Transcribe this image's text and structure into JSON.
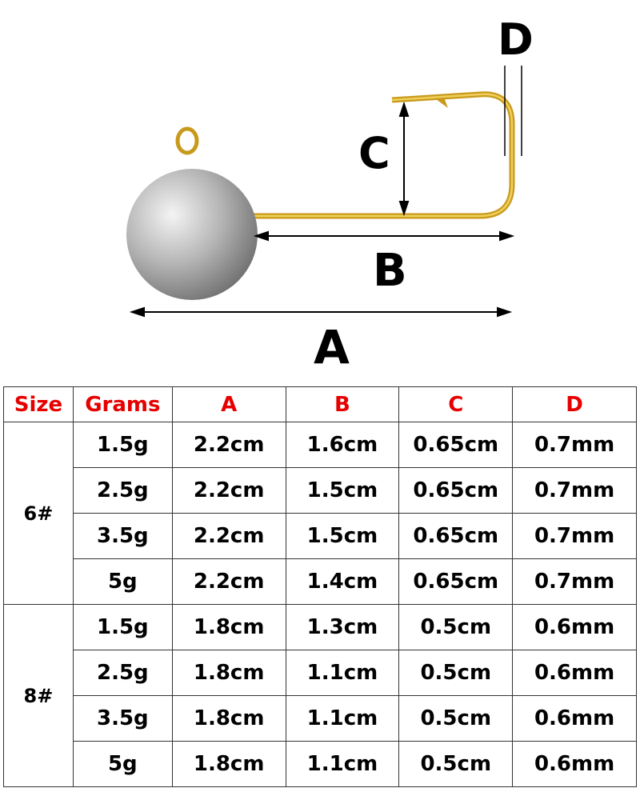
{
  "diagram": {
    "labels": {
      "A": "A",
      "B": "B",
      "C": "C",
      "D": "D"
    },
    "colors": {
      "hook": "#d4a520",
      "head": "#b8b8b8",
      "header_text": "#e60000"
    }
  },
  "table": {
    "headers": [
      "Size",
      "Grams",
      "A",
      "B",
      "C",
      "D"
    ],
    "groups": [
      {
        "size": "6#",
        "rows": [
          [
            "1.5g",
            "2.2cm",
            "1.6cm",
            "0.65cm",
            "0.7mm"
          ],
          [
            "2.5g",
            "2.2cm",
            "1.5cm",
            "0.65cm",
            "0.7mm"
          ],
          [
            "3.5g",
            "2.2cm",
            "1.5cm",
            "0.65cm",
            "0.7mm"
          ],
          [
            "5g",
            "2.2cm",
            "1.4cm",
            "0.65cm",
            "0.7mm"
          ]
        ]
      },
      {
        "size": "8#",
        "rows": [
          [
            "1.5g",
            "1.8cm",
            "1.3cm",
            "0.5cm",
            "0.6mm"
          ],
          [
            "2.5g",
            "1.8cm",
            "1.1cm",
            "0.5cm",
            "0.6mm"
          ],
          [
            "3.5g",
            "1.8cm",
            "1.1cm",
            "0.5cm",
            "0.6mm"
          ],
          [
            "5g",
            "1.8cm",
            "1.1cm",
            "0.5cm",
            "0.6mm"
          ]
        ]
      }
    ]
  }
}
